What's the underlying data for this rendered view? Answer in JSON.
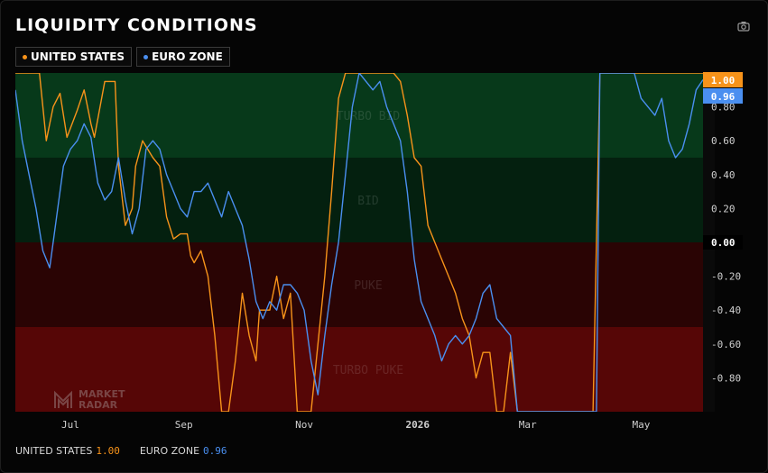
{
  "header": {
    "title": "LIQUIDITY CONDITIONS"
  },
  "legend": [
    {
      "label": "UNITED STATES",
      "color": "#f7931a"
    },
    {
      "label": "EURO ZONE",
      "color": "#4a8ff0"
    }
  ],
  "footer": {
    "us_label": "UNITED STATES",
    "us_value": "1.00",
    "ez_label": "EURO ZONE",
    "ez_value": "0.96"
  },
  "watermark": {
    "line1": "MARKET",
    "line2": "RADAR"
  },
  "chart_data": {
    "type": "line",
    "ylim": [
      -1.0,
      1.0
    ],
    "x_ticks": [
      "Jul",
      "Sep",
      "Nov",
      "2026",
      "Mar",
      "May"
    ],
    "x_tick_pos": [
      0.08,
      0.245,
      0.42,
      0.585,
      0.745,
      0.91
    ],
    "y_ticks": [
      0.8,
      0.6,
      0.4,
      0.2,
      0.0,
      -0.2,
      -0.4,
      -0.6,
      -0.8
    ],
    "y_tick_labels": [
      "0.80",
      "0.60",
      "0.40",
      "0.20",
      "0.00",
      "-0.20",
      "-0.40",
      "-0.60",
      "-0.80"
    ],
    "zones": [
      {
        "label": "TURBO BID",
        "from": 0.5,
        "to": 1.0,
        "color": "#07391a"
      },
      {
        "label": "BID",
        "from": 0.0,
        "to": 0.5,
        "color": "#04200f"
      },
      {
        "label": "PUKE",
        "from": -0.5,
        "to": 0.0,
        "color": "#2a0404"
      },
      {
        "label": "TURBO PUKE",
        "from": -1.0,
        "to": -0.5,
        "color": "#560606"
      }
    ],
    "last_values": [
      {
        "series": "UNITED STATES",
        "value": "1.00",
        "color": "#f7931a"
      },
      {
        "series": "EURO ZONE",
        "value": "0.96",
        "color": "#4a8ff0"
      }
    ],
    "series": [
      {
        "name": "UNITED STATES",
        "color": "#f7931a",
        "x": [
          0,
          0.02,
          0.035,
          0.045,
          0.055,
          0.065,
          0.075,
          0.09,
          0.1,
          0.11,
          0.115,
          0.13,
          0.145,
          0.15,
          0.16,
          0.17,
          0.175,
          0.185,
          0.2,
          0.21,
          0.22,
          0.23,
          0.24,
          0.25,
          0.255,
          0.26,
          0.27,
          0.28,
          0.29,
          0.3,
          0.31,
          0.32,
          0.33,
          0.34,
          0.35,
          0.355,
          0.37,
          0.38,
          0.39,
          0.4,
          0.41,
          0.42,
          0.43,
          0.44,
          0.45,
          0.46,
          0.47,
          0.48,
          0.49,
          0.5,
          0.51,
          0.52,
          0.53,
          0.54,
          0.55,
          0.56,
          0.57,
          0.58,
          0.59,
          0.6,
          0.61,
          0.62,
          0.63,
          0.64,
          0.65,
          0.66,
          0.67,
          0.68,
          0.69,
          0.7,
          0.71,
          0.72,
          0.73,
          0.74,
          0.745,
          0.755,
          0.765,
          0.77,
          0.78,
          0.8,
          0.84,
          0.85,
          0.86,
          0.87,
          0.88,
          0.9,
          0.92,
          0.94,
          0.96,
          0.98,
          1.0
        ],
        "y": [
          1,
          1,
          1,
          0.6,
          0.8,
          0.88,
          0.62,
          0.78,
          0.9,
          0.7,
          0.62,
          0.95,
          0.95,
          0.45,
          0.1,
          0.2,
          0.45,
          0.6,
          0.5,
          0.45,
          0.15,
          0.02,
          0.05,
          0.05,
          -0.08,
          -0.12,
          -0.05,
          -0.2,
          -0.55,
          -1.0,
          -1.0,
          -0.7,
          -0.3,
          -0.55,
          -0.7,
          -0.4,
          -0.4,
          -0.2,
          -0.45,
          -0.3,
          -1.0,
          -1.0,
          -1.0,
          -0.6,
          -0.2,
          0.3,
          0.85,
          1.0,
          1.0,
          1.0,
          1.0,
          1.0,
          1.0,
          1.0,
          1.0,
          0.95,
          0.75,
          0.5,
          0.45,
          0.1,
          0.0,
          -0.1,
          -0.2,
          -0.3,
          -0.45,
          -0.55,
          -0.8,
          -0.65,
          -0.65,
          -1.0,
          -1.0,
          -0.65,
          -1.0,
          -1.0,
          -1.0,
          -1.0,
          -1.0,
          -1.0,
          -1.0,
          -1.0,
          -1.0,
          1.0,
          1.0,
          1.0,
          1.0,
          1.0,
          1.0,
          1.0,
          1.0,
          1.0,
          1.0
        ]
      },
      {
        "name": "EURO ZONE",
        "color": "#4a8ff0",
        "x": [
          0,
          0.01,
          0.02,
          0.03,
          0.04,
          0.05,
          0.06,
          0.07,
          0.08,
          0.09,
          0.1,
          0.11,
          0.12,
          0.13,
          0.14,
          0.15,
          0.16,
          0.17,
          0.18,
          0.19,
          0.2,
          0.21,
          0.22,
          0.23,
          0.24,
          0.25,
          0.26,
          0.27,
          0.28,
          0.29,
          0.3,
          0.31,
          0.32,
          0.33,
          0.34,
          0.35,
          0.36,
          0.37,
          0.38,
          0.39,
          0.4,
          0.41,
          0.42,
          0.43,
          0.44,
          0.45,
          0.46,
          0.47,
          0.48,
          0.49,
          0.5,
          0.51,
          0.52,
          0.53,
          0.54,
          0.55,
          0.56,
          0.57,
          0.58,
          0.59,
          0.6,
          0.61,
          0.62,
          0.63,
          0.64,
          0.65,
          0.66,
          0.67,
          0.68,
          0.69,
          0.7,
          0.71,
          0.72,
          0.73,
          0.74,
          0.745,
          0.75,
          0.76,
          0.8,
          0.82,
          0.84,
          0.845,
          0.85,
          0.86,
          0.87,
          0.88,
          0.89,
          0.9,
          0.91,
          0.92,
          0.93,
          0.94,
          0.95,
          0.96,
          0.97,
          0.98,
          0.99,
          1.0
        ],
        "y": [
          0.9,
          0.6,
          0.4,
          0.2,
          -0.05,
          -0.15,
          0.15,
          0.45,
          0.55,
          0.6,
          0.7,
          0.62,
          0.35,
          0.25,
          0.3,
          0.5,
          0.25,
          0.05,
          0.2,
          0.55,
          0.6,
          0.55,
          0.4,
          0.3,
          0.2,
          0.15,
          0.3,
          0.3,
          0.35,
          0.25,
          0.15,
          0.3,
          0.2,
          0.1,
          -0.1,
          -0.35,
          -0.45,
          -0.35,
          -0.4,
          -0.25,
          -0.25,
          -0.3,
          -0.4,
          -0.7,
          -0.9,
          -0.55,
          -0.25,
          0.0,
          0.4,
          0.8,
          1.0,
          0.95,
          0.9,
          0.95,
          0.8,
          0.7,
          0.6,
          0.3,
          -0.1,
          -0.35,
          -0.45,
          -0.55,
          -0.7,
          -0.6,
          -0.55,
          -0.6,
          -0.55,
          -0.45,
          -0.3,
          -0.25,
          -0.45,
          -0.5,
          -0.55,
          -1.0,
          -1.0,
          -1.0,
          -1.0,
          -1.0,
          -1.0,
          -1.0,
          -1.0,
          -1.0,
          1.0,
          1.0,
          1.0,
          1.0,
          1.0,
          1.0,
          0.85,
          0.8,
          0.75,
          0.85,
          0.6,
          0.5,
          0.55,
          0.7,
          0.9,
          0.96
        ]
      }
    ]
  }
}
